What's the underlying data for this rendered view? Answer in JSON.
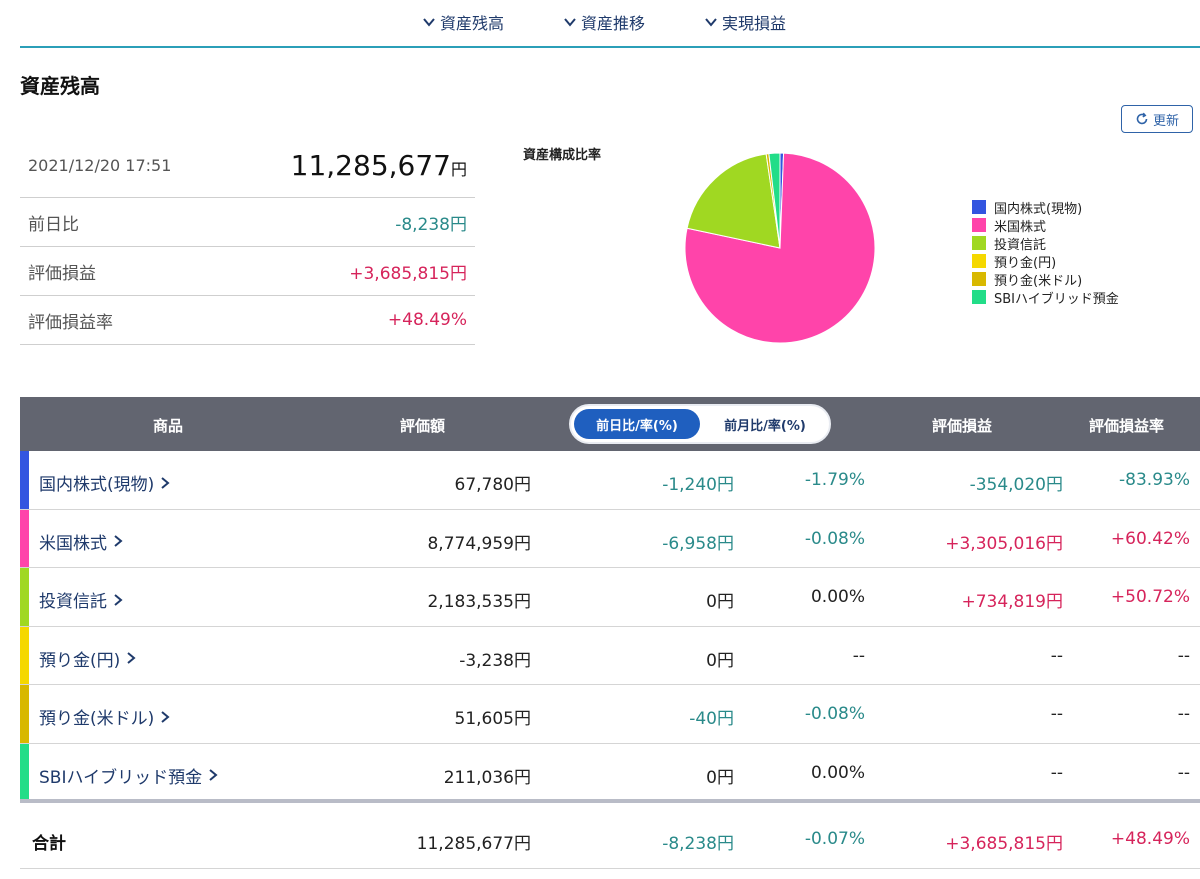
{
  "nav": {
    "items": [
      {
        "label": "資産残高"
      },
      {
        "label": "資産推移"
      },
      {
        "label": "実現損益"
      }
    ]
  },
  "section_title": "資産残高",
  "refresh_label": "更新",
  "summary": {
    "datetime": "2021/12/20 17:51",
    "total": "11,285,677",
    "total_unit": "円",
    "rows": [
      {
        "label": "前日比",
        "value": "-8,238円"
      },
      {
        "label": "評価損益",
        "value": "+3,685,815円"
      },
      {
        "label": "評価損益率",
        "value": "+48.49%"
      }
    ]
  },
  "chart_data": {
    "type": "pie",
    "title": "資産構成比率",
    "categories": [
      "国内株式(現物)",
      "米国株式",
      "投資信託",
      "預り金(円)",
      "預り金(米ドル)",
      "SBIハイブリッド預金"
    ],
    "values": [
      67780,
      8774959,
      2183535,
      0,
      51605,
      211036
    ],
    "colors": [
      "#3355e0",
      "#ff44aa",
      "#a0d822",
      "#f5d800",
      "#d8b800",
      "#22dd88"
    ],
    "legend_position": "right"
  },
  "table": {
    "headers": {
      "product": "商品",
      "value": "評価額",
      "toggle_day": "前日比/率(%)",
      "toggle_month": "前月比/率(%)",
      "pl": "評価損益",
      "pl_rate": "評価損益率"
    },
    "rows": [
      {
        "name": "国内株式(現物)",
        "color": "#3355e0",
        "value": "67,780円",
        "day_change": "-1,240円",
        "day_rate": "-1.79%",
        "pl": "-354,020円",
        "pl_rate": "-83.93%",
        "day_sign": "neg",
        "rate_sign": "neg",
        "pl_sign": "neg"
      },
      {
        "name": "米国株式",
        "color": "#ff44aa",
        "value": "8,774,959円",
        "day_change": "-6,958円",
        "day_rate": "-0.08%",
        "pl": "+3,305,016円",
        "pl_rate": "+60.42%",
        "day_sign": "neg",
        "rate_sign": "neg",
        "pl_sign": "pos"
      },
      {
        "name": "投資信託",
        "color": "#a0d822",
        "value": "2,183,535円",
        "day_change": "0円",
        "day_rate": "0.00%",
        "pl": "+734,819円",
        "pl_rate": "+50.72%",
        "day_sign": "neutral",
        "rate_sign": "neutral",
        "pl_sign": "pos"
      },
      {
        "name": "預り金(円)",
        "color": "#f5d800",
        "value": "-3,238円",
        "day_change": "0円",
        "day_rate": "--",
        "pl": "--",
        "pl_rate": "--",
        "day_sign": "neutral",
        "rate_sign": "neutral",
        "pl_sign": "neutral"
      },
      {
        "name": "預り金(米ドル)",
        "color": "#d8b800",
        "value": "51,605円",
        "day_change": "-40円",
        "day_rate": "-0.08%",
        "pl": "--",
        "pl_rate": "--",
        "day_sign": "neg",
        "rate_sign": "neg",
        "pl_sign": "neutral"
      },
      {
        "name": "SBIハイブリッド預金",
        "color": "#22dd88",
        "value": "211,036円",
        "day_change": "0円",
        "day_rate": "0.00%",
        "pl": "--",
        "pl_rate": "--",
        "day_sign": "neutral",
        "rate_sign": "neutral",
        "pl_sign": "neutral"
      }
    ],
    "total": {
      "name": "合計",
      "value": "11,285,677円",
      "day_change": "-8,238円",
      "day_rate": "-0.07%",
      "pl": "+3,685,815円",
      "pl_rate": "+48.49%"
    }
  }
}
